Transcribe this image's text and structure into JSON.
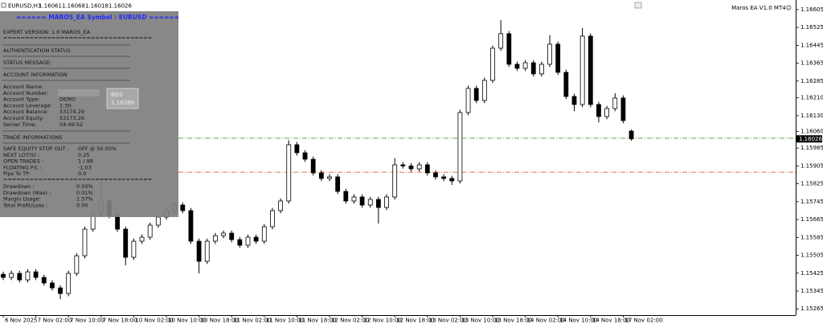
{
  "header": {
    "symbol": "EURUSD,H1",
    "ea_label": "Maros EA  V1.0 MT4☺"
  },
  "panel": {
    "title": "====== MAROS_EA Symbol : EURUSD ======",
    "version": "EXPERT VERSION: 1.0 MAROS_EA",
    "rule": "==================================",
    "auth": "AUTHENTICATION STATUS",
    "status": "STATUS MESSAGE:",
    "account_header": "ACCOUNT INFORMATION",
    "account": [
      {
        "label": "Account Name:"
      },
      {
        "label": "Account Number:"
      },
      {
        "label": "Account Type:",
        "value": "DEMO"
      },
      {
        "label": "Account Leverage:",
        "value": "1:30"
      },
      {
        "label": "Account Balance:",
        "value": "53174.29"
      },
      {
        "label": "Account Equity:",
        "value": "53173.26"
      },
      {
        "label": "Server Time:",
        "value": "04:49:52"
      }
    ],
    "trade_header": "TRADE INFORMATIONS",
    "trade": [
      {
        "label": "SAFE EQUITY STOP OUT :",
        "value": "OFF  @ 50.00%"
      },
      {
        "label": "NEXT LOT(S) :",
        "value": "0.25"
      },
      {
        "label": "OPEN TRADES :",
        "value": "1 / 99"
      },
      {
        "label": "FLOATING P/L :",
        "value": "-1.03"
      },
      {
        "label": "Pips To TP:",
        "value": "0.0"
      }
    ],
    "drawdown": [
      {
        "label": "Drawdown :",
        "value": "0.00%"
      },
      {
        "label": "Drawdown (Max) :",
        "value": "0.01%"
      },
      {
        "label": "Margin Usage:",
        "value": "1.57%"
      },
      {
        "label": "Total Profit/Loss :",
        "value": "0.00"
      }
    ],
    "bgs": {
      "label": "BGS",
      "value": "1.16289"
    }
  },
  "chart_data": {
    "type": "candlestick",
    "categories": [
      "6 Nov 2025",
      null,
      null,
      null,
      "7 Nov 02:00",
      null,
      null,
      null,
      "7 Nov 10:00",
      null,
      null,
      null,
      "7 Nov 18:00",
      null,
      null,
      null,
      "10 Nov 02:00",
      null,
      null,
      null,
      "10 Nov 10:00",
      null,
      null,
      null,
      "10 Nov 18:00",
      null,
      null,
      null,
      "11 Nov 02:00",
      null,
      null,
      null,
      "11 Nov 10:00",
      null,
      null,
      null,
      "11 Nov 18:00",
      null,
      null,
      null,
      "12 Nov 02:00",
      null,
      null,
      null,
      "12 Nov 10:00",
      null,
      null,
      null,
      "12 Nov 18:00",
      null,
      null,
      null,
      "13 Nov 02:00",
      null,
      null,
      null,
      "13 Nov 10:00",
      null,
      null,
      null,
      "13 Nov 18:00",
      null,
      null,
      null,
      "14 Nov 02:00",
      null,
      null,
      null,
      "14 Nov 10:00",
      null,
      null,
      null,
      "14 Nov 18:00",
      null,
      null,
      null,
      "17 Nov 02:00",
      null
    ],
    "ohlc": [
      [
        1.1542,
        1.15432,
        1.15394,
        1.15406
      ],
      [
        1.15406,
        1.15436,
        1.15394,
        1.15424
      ],
      [
        1.15424,
        1.15436,
        1.15383,
        1.15395
      ],
      [
        1.15395,
        1.15443,
        1.15383,
        1.15431
      ],
      [
        1.15431,
        1.15443,
        1.15394,
        1.15406
      ],
      [
        1.15406,
        1.15418,
        1.15369,
        1.15381
      ],
      [
        1.15381,
        1.15393,
        1.15347,
        1.15359
      ],
      [
        1.15359,
        1.15371,
        1.15309,
        1.15334
      ],
      [
        1.15334,
        1.15436,
        1.15322,
        1.15424
      ],
      [
        1.15424,
        1.15515,
        1.15412,
        1.15503
      ],
      [
        1.15503,
        1.15634,
        1.15491,
        1.15622
      ],
      [
        1.15622,
        1.15706,
        1.1561,
        1.15694
      ],
      [
        1.15694,
        1.15838,
        1.15682,
        1.15748
      ],
      [
        1.15748,
        1.1576,
        1.15671,
        1.15683
      ],
      [
        1.15683,
        1.15695,
        1.1561,
        1.15622
      ],
      [
        1.15622,
        1.15634,
        1.1546,
        1.15496
      ],
      [
        1.15496,
        1.1558,
        1.15484,
        1.15568
      ],
      [
        1.15568,
        1.15598,
        1.15556,
        1.15586
      ],
      [
        1.15586,
        1.15652,
        1.15574,
        1.1564
      ],
      [
        1.1564,
        1.15688,
        1.15628,
        1.15676
      ],
      [
        1.15676,
        1.15717,
        1.15664,
        1.15705
      ],
      [
        1.15705,
        1.15742,
        1.15693,
        1.1573
      ],
      [
        1.1573,
        1.15742,
        1.15693,
        1.15705
      ],
      [
        1.15705,
        1.15717,
        1.15556,
        1.15568
      ],
      [
        1.15568,
        1.1558,
        1.15424,
        1.15478
      ],
      [
        1.15478,
        1.1558,
        1.15466,
        1.15568
      ],
      [
        1.15568,
        1.15605,
        1.15556,
        1.15593
      ],
      [
        1.15593,
        1.15616,
        1.15581,
        1.15604
      ],
      [
        1.15604,
        1.15616,
        1.15563,
        1.15575
      ],
      [
        1.15575,
        1.15587,
        1.15538,
        1.1555
      ],
      [
        1.1555,
        1.15598,
        1.15538,
        1.15586
      ],
      [
        1.15586,
        1.15598,
        1.15556,
        1.15568
      ],
      [
        1.15568,
        1.15645,
        1.15556,
        1.15633
      ],
      [
        1.15633,
        1.15717,
        1.15621,
        1.15705
      ],
      [
        1.15705,
        1.1576,
        1.15693,
        1.15748
      ],
      [
        1.15748,
        1.1602,
        1.15736,
        1.16
      ],
      [
        1.16,
        1.16012,
        1.15952,
        1.15964
      ],
      [
        1.15964,
        1.15976,
        1.15923,
        1.15935
      ],
      [
        1.15935,
        1.15947,
        1.15862,
        1.15874
      ],
      [
        1.15874,
        1.15886,
        1.15837,
        1.15849
      ],
      [
        1.15849,
        1.15868,
        1.15837,
        1.15856
      ],
      [
        1.15856,
        1.15868,
        1.15779,
        1.15791
      ],
      [
        1.15791,
        1.15803,
        1.15736,
        1.15748
      ],
      [
        1.15748,
        1.15778,
        1.15736,
        1.15766
      ],
      [
        1.15766,
        1.15778,
        1.15718,
        1.1573
      ],
      [
        1.1573,
        1.15767,
        1.15718,
        1.15755
      ],
      [
        1.15755,
        1.15767,
        1.15647,
        1.15719
      ],
      [
        1.15719,
        1.15778,
        1.15707,
        1.15766
      ],
      [
        1.15766,
        1.1594,
        1.15754,
        1.1591
      ],
      [
        1.1591,
        1.15922,
        1.15893,
        1.15905
      ],
      [
        1.15905,
        1.15917,
        1.1588,
        1.15892
      ],
      [
        1.15892,
        1.15922,
        1.1588,
        1.1591
      ],
      [
        1.1591,
        1.15922,
        1.15862,
        1.15874
      ],
      [
        1.15874,
        1.15886,
        1.15844,
        1.15856
      ],
      [
        1.15856,
        1.15868,
        1.15837,
        1.15849
      ],
      [
        1.15849,
        1.15861,
        1.1582,
        1.15838
      ],
      [
        1.15838,
        1.16156,
        1.15826,
        1.16144
      ],
      [
        1.16144,
        1.16264,
        1.16132,
        1.16252
      ],
      [
        1.16252,
        1.16264,
        1.16186,
        1.16198
      ],
      [
        1.16198,
        1.163,
        1.16186,
        1.16288
      ],
      [
        1.16288,
        1.16444,
        1.16276,
        1.16432
      ],
      [
        1.16432,
        1.16558,
        1.1642,
        1.16497
      ],
      [
        1.16497,
        1.16509,
        1.16348,
        1.1636
      ],
      [
        1.1636,
        1.16372,
        1.1633,
        1.16342
      ],
      [
        1.16342,
        1.16379,
        1.1633,
        1.16367
      ],
      [
        1.16367,
        1.16379,
        1.16305,
        1.16317
      ],
      [
        1.16317,
        1.16372,
        1.16305,
        1.1636
      ],
      [
        1.1636,
        1.1649,
        1.16348,
        1.1645
      ],
      [
        1.1645,
        1.16462,
        1.16312,
        1.16324
      ],
      [
        1.16324,
        1.16336,
        1.16204,
        1.16216
      ],
      [
        1.16216,
        1.16228,
        1.1615,
        1.1618
      ],
      [
        1.1618,
        1.16522,
        1.16168,
        1.16486
      ],
      [
        1.16486,
        1.16498,
        1.16168,
        1.1618
      ],
      [
        1.1618,
        1.16192,
        1.161,
        1.16126
      ],
      [
        1.16126,
        1.16174,
        1.16114,
        1.16162
      ],
      [
        1.16162,
        1.1623,
        1.1615,
        1.16209
      ],
      [
        1.16209,
        1.16221,
        1.16096,
        1.16108
      ],
      [
        1.16061,
        1.16068,
        1.16018,
        1.16026
      ]
    ],
    "up_color": "#ffffff",
    "down_color": "#000000",
    "outline_color": "#000000",
    "levels": [
      {
        "value": 1.16029,
        "color": "#4f9a3a"
      },
      {
        "value": 1.15877,
        "color": "#e0602c"
      }
    ],
    "ylim": [
      1.15237,
      1.16619
    ],
    "yticks": [
      1.16605,
      1.16525,
      1.16445,
      1.16365,
      1.16285,
      {
        "value": 1.1621,
        "label": "1.16210"
      },
      {
        "value": 1.1613,
        "label": "1.16130"
      },
      {
        "value": 1.1606,
        "label": "1.16060"
      },
      1.15985,
      1.15905,
      1.15825,
      1.15745,
      1.15665,
      1.15585,
      1.15505,
      1.15425,
      1.15345,
      1.15265
    ]
  }
}
